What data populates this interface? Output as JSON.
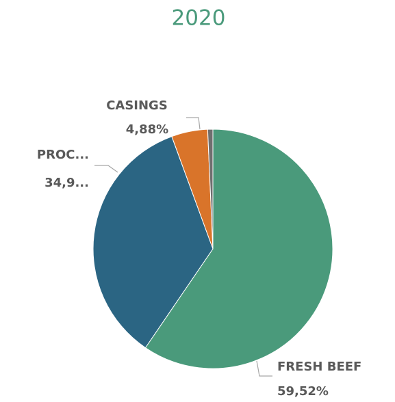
{
  "chart_data": {
    "type": "pie",
    "title": "2020",
    "categories": [
      "FRESH BEEF",
      "PROC...",
      "CASINGS",
      null
    ],
    "values": [
      59.52,
      34.9,
      4.88,
      0.7
    ],
    "value_labels": [
      "59,52%",
      "34,9...",
      "4,88%",
      null
    ],
    "colors": [
      "#4a9a7b",
      "#2b6583",
      "#d9742a",
      "#6f6f6f"
    ],
    "title_color": "#4a9a7b"
  }
}
